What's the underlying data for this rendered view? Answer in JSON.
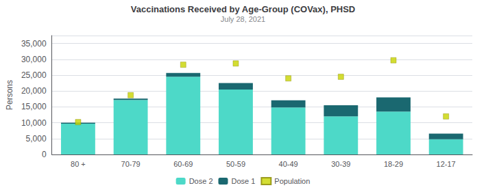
{
  "chart_data": {
    "type": "bar",
    "title": "Vaccinations Received by Age-Group (COVax), PHSD",
    "subtitle": "July 28, 2021",
    "categories": [
      "80 +",
      "70-79",
      "60-69",
      "50-59",
      "40-49",
      "30-39",
      "18-29",
      "12-17"
    ],
    "series": [
      {
        "name": "Dose 2",
        "type": "bar",
        "color": "#4dd9c8",
        "values": [
          9700,
          17200,
          24500,
          20500,
          14800,
          12000,
          13500,
          4800
        ]
      },
      {
        "name": "Dose 1",
        "type": "bar",
        "color": "#1a6870",
        "values": [
          300,
          400,
          1200,
          2000,
          2300,
          3500,
          4500,
          1800
        ]
      },
      {
        "name": "Population",
        "type": "scatter",
        "marker": "square",
        "color": "#c8d400",
        "values": [
          10200,
          18700,
          28300,
          28700,
          24000,
          24500,
          29700,
          12000
        ]
      }
    ],
    "ylabel": "Persons",
    "ylim": [
      0,
      37500
    ],
    "yticks": [
      0,
      {
        "value": 5000,
        "label": "5,000"
      },
      {
        "value": 10000,
        "label": "10,000"
      },
      {
        "value": 15000,
        "label": "15,000"
      },
      {
        "value": 20000,
        "label": "20,000"
      },
      {
        "value": 25000,
        "label": "25,000"
      },
      {
        "value": 30000,
        "label": "30,000"
      },
      {
        "value": 35000,
        "label": "35,000"
      }
    ],
    "grid": true,
    "stacked": true,
    "legend": "bottom"
  }
}
